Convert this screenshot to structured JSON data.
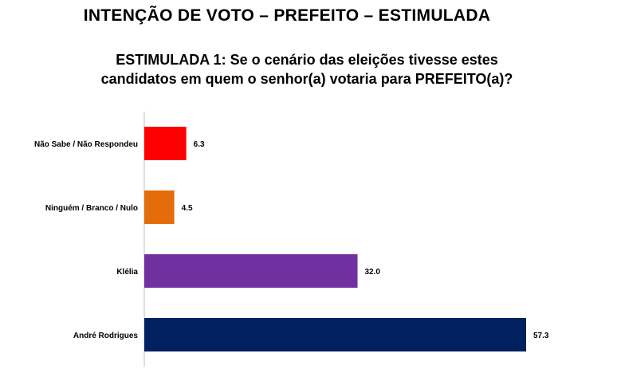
{
  "header": {
    "title": "INTENÇÃO DE VOTO – PREFEITO – ESTIMULADA",
    "subtitle_line1": "ESTIMULADA 1: Se o cenário das eleições tivesse estes",
    "subtitle_line2": "candidatos em quem o senhor(a) votaria para PREFEITO(a)?"
  },
  "chart_data": {
    "type": "bar",
    "orientation": "horizontal",
    "categories": [
      "Não Sabe / Não Respondeu",
      "Ninguém / Branco / Nulo",
      "Klélia",
      "André Rodrigues"
    ],
    "values": [
      6.3,
      4.5,
      32.0,
      57.3
    ],
    "value_labels": [
      "6.3",
      "4.5",
      "32.0",
      "57.3"
    ],
    "colors": [
      "#ff0000",
      "#e46c0a",
      "#7030a0",
      "#002060"
    ],
    "xlim": [
      0,
      60
    ],
    "grid": false,
    "legend": "none"
  }
}
